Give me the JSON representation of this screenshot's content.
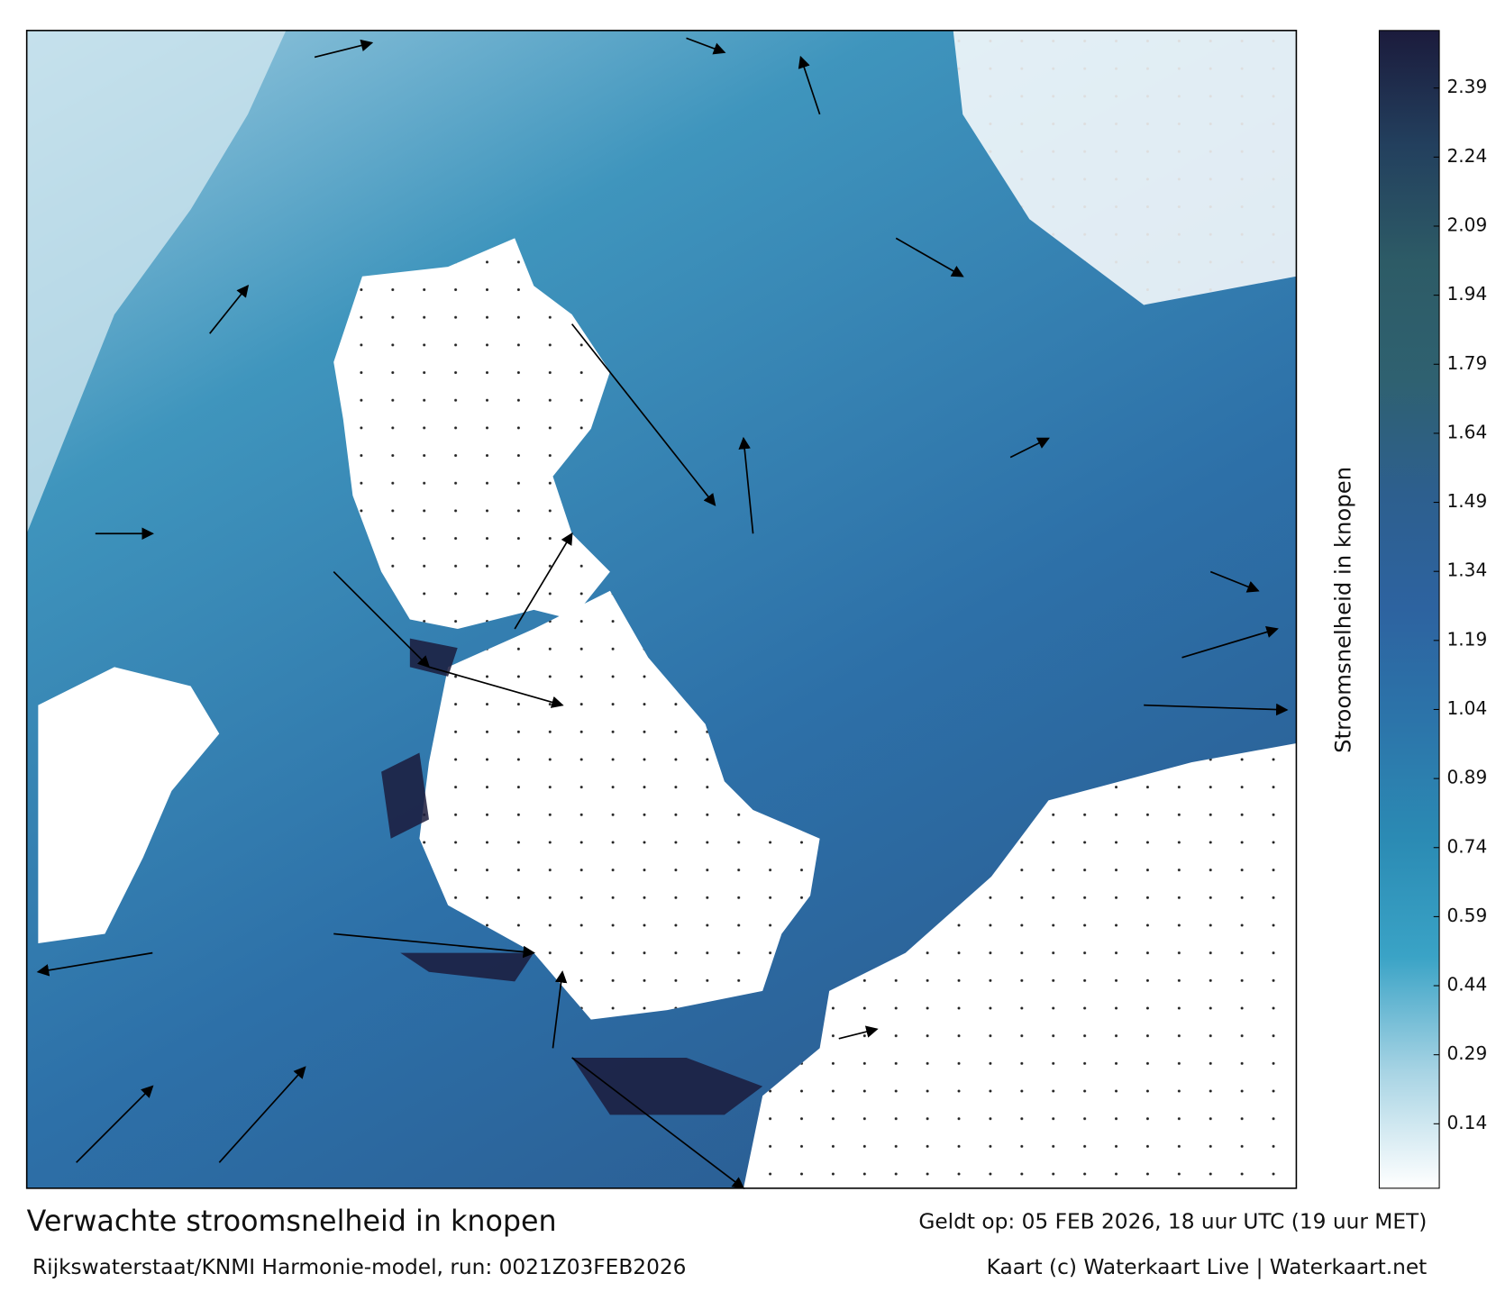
{
  "map": {
    "title": "Verwachte stroomsnelheid in knopen",
    "valid": "Geldt op: 05 FEB 2026, 18 uur UTC (19 uur MET)",
    "source": "Rijkswaterstaat/KNMI Harmonie-model, run: 0021Z03FEB2026",
    "credit": "Kaart (c) Waterkaart Live | Waterkaart.net"
  },
  "colorbar": {
    "label": "Stroomsnelheid in knopen",
    "lim": [
      0,
      2.515
    ],
    "ticks": [
      0.14,
      0.29,
      0.44,
      0.59,
      0.74,
      0.89,
      1.04,
      1.19,
      1.34,
      1.49,
      1.64,
      1.79,
      1.94,
      2.09,
      2.24,
      2.39
    ],
    "colors": [
      "#ffffff",
      "#a8d4e4",
      "#3aa3c6",
      "#2b8bb4",
      "#2c75aa",
      "#2d63a0",
      "#2d5f8e",
      "#2f6170",
      "#2d5b66",
      "#23405e",
      "#1b1b3c"
    ]
  }
}
